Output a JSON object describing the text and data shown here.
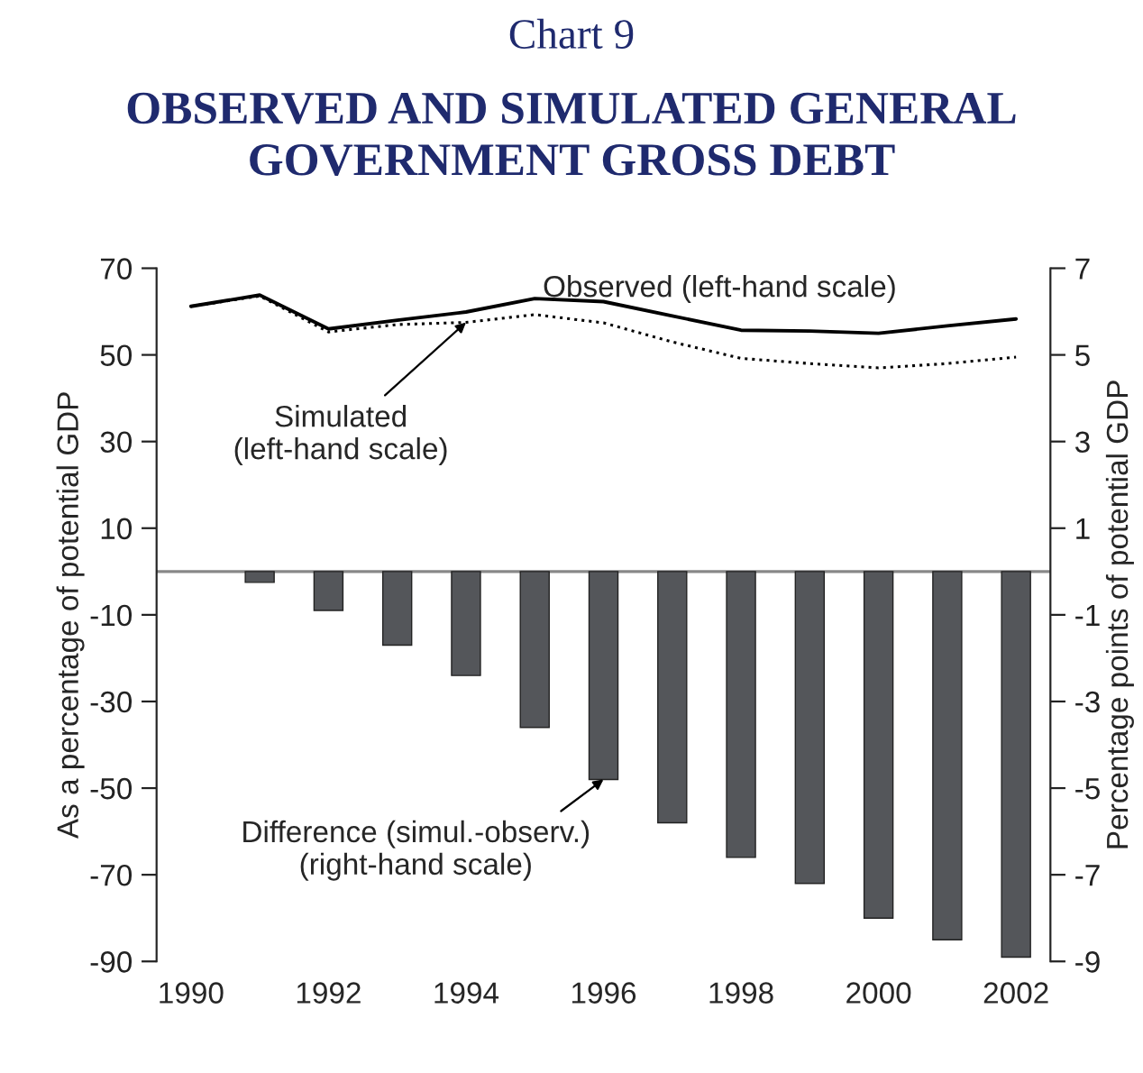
{
  "chart_data": {
    "type": "line",
    "title": "Chart 9",
    "subtitle": "OBSERVED AND SIMULATED GENERAL GOVERNMENT GROSS DEBT",
    "ylabel": "As a percentage of potential GDP",
    "y2label": "Percentage points of potential GDP",
    "x": [
      1990,
      1991,
      1992,
      1993,
      1994,
      1995,
      1996,
      1997,
      1998,
      1999,
      2000,
      2001,
      2002
    ],
    "series": [
      {
        "color": "#000000",
        "line_style": "solid",
        "values": [
          61.2,
          63.8,
          56,
          58,
          59.9,
          63,
          62.3,
          59,
          55.7,
          55.5,
          55,
          56.7,
          58.3
        ]
      },
      {
        "color": "#000000",
        "line_style": "dotted",
        "values": [
          61.2,
          63.6,
          55.3,
          57,
          57.5,
          59.3,
          57.4,
          53,
          49.2,
          48,
          47,
          48,
          49.5
        ]
      },
      {
        "type": "bar",
        "axis": "y2",
        "color": "#54565a",
        "values": [
          null,
          -0.25,
          -0.9,
          -1.7,
          -2.4,
          -3.6,
          -4.8,
          -5.8,
          -6.6,
          -7.2,
          -8.0,
          -8.5,
          -8.9
        ]
      }
    ],
    "xlim": [
      1989.5,
      2002.5
    ],
    "xticks": [
      1990,
      1992,
      1994,
      1996,
      1998,
      2000,
      2002
    ],
    "ylim": [
      -90,
      70
    ],
    "yticks": [
      -90,
      -70,
      -50,
      -30,
      -10,
      10,
      30,
      50,
      70
    ],
    "y2lim": [
      -9,
      7
    ],
    "y2ticks": [
      -9,
      -7,
      -5,
      -3,
      -1,
      1,
      3,
      5,
      7
    ],
    "grid": false,
    "legend": false,
    "annotations": [
      "Observed (left-hand scale)",
      {
        "text": "Simulated\n(left-hand scale)",
        "x": 1994,
        "y": 57.5
      },
      "Difference (simul.-observ.)\n(right-hand scale)"
    ]
  }
}
